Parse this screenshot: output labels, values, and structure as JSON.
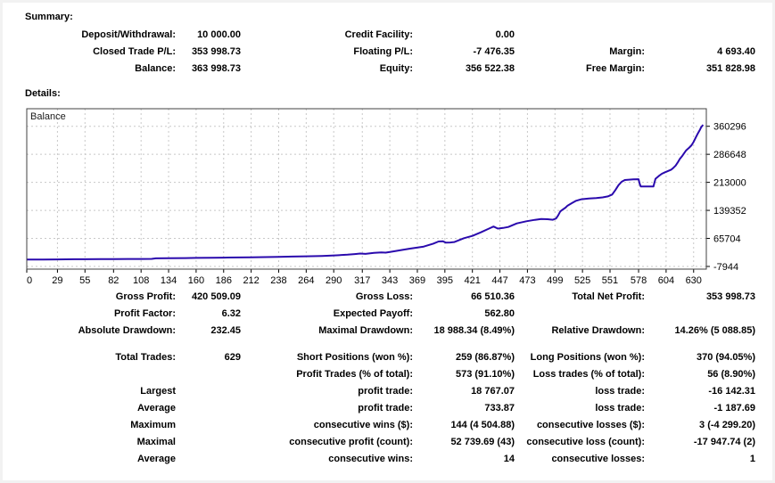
{
  "summary": {
    "heading": "Summary:",
    "rows": [
      [
        "Deposit/Withdrawal:",
        "10 000.00",
        "Credit Facility:",
        "0.00",
        "",
        ""
      ],
      [
        "Closed Trade P/L:",
        "353 998.73",
        "Floating P/L:",
        "-7 476.35",
        "Margin:",
        "4 693.40"
      ],
      [
        "Balance:",
        "363 998.73",
        "Equity:",
        "356 522.38",
        "Free Margin:",
        "351 828.98"
      ]
    ]
  },
  "details": {
    "heading": "Details:",
    "stats_top": [
      [
        "Gross Profit:",
        "420 509.09",
        "Gross Loss:",
        "66 510.36",
        "Total Net Profit:",
        "353 998.73"
      ],
      [
        "Profit Factor:",
        "6.32",
        "Expected Payoff:",
        "562.80",
        "",
        ""
      ],
      [
        "Absolute Drawdown:",
        "232.45",
        "Maximal Drawdown:",
        "18 988.34 (8.49%)",
        "Relative Drawdown:",
        "14.26% (5 088.85)"
      ]
    ],
    "stats_bottom": [
      [
        "Total Trades:",
        "629",
        "Short Positions (won %):",
        "259 (86.87%)",
        "Long Positions (won %):",
        "370 (94.05%)"
      ],
      [
        "",
        "",
        "Profit Trades (% of total):",
        "573 (91.10%)",
        "Loss trades (% of total):",
        "56 (8.90%)"
      ],
      [
        "Largest",
        "",
        "profit trade:",
        "18 767.07",
        "loss trade:",
        "-16 142.31"
      ],
      [
        "Average",
        "",
        "profit trade:",
        "733.87",
        "loss trade:",
        "-1 187.69"
      ],
      [
        "Maximum",
        "",
        "consecutive wins ($):",
        "144 (4 504.88)",
        "consecutive losses ($):",
        "3 (-4 299.20)"
      ],
      [
        "Maximal",
        "",
        "consecutive profit (count):",
        "52 739.69 (43)",
        "consecutive loss (count):",
        "-17 947.74 (2)"
      ],
      [
        "Average",
        "",
        "consecutive wins:",
        "14",
        "consecutive losses:",
        "1"
      ]
    ]
  },
  "chart_data": {
    "type": "line",
    "title": "Balance",
    "legend": [
      "Balance"
    ],
    "legend_position": "top-left-inside",
    "grid": "dashed",
    "xlabel": "",
    "ylabel": "",
    "xlim": [
      0,
      642
    ],
    "ylim": [
      -15000,
      406400
    ],
    "x_ticks": [
      0,
      29,
      55,
      82,
      108,
      134,
      160,
      186,
      212,
      238,
      264,
      290,
      317,
      343,
      369,
      395,
      421,
      447,
      473,
      499,
      525,
      551,
      578,
      604,
      630
    ],
    "y_ticks": [
      -7944,
      65704,
      139352,
      213000,
      286648,
      360296
    ],
    "colors": {
      "line": "#2a0aad",
      "grid": "#c8c8c8",
      "border": "#404040",
      "background": "#ffffff"
    },
    "series": [
      {
        "name": "Balance",
        "points": [
          [
            0,
            10000
          ],
          [
            15,
            10300
          ],
          [
            29,
            10600
          ],
          [
            45,
            10900
          ],
          [
            55,
            11000
          ],
          [
            70,
            11200
          ],
          [
            82,
            11400
          ],
          [
            95,
            11600
          ],
          [
            108,
            11800
          ],
          [
            118,
            11900
          ],
          [
            122,
            13300
          ],
          [
            134,
            13700
          ],
          [
            150,
            14100
          ],
          [
            160,
            14500
          ],
          [
            175,
            14900
          ],
          [
            186,
            15300
          ],
          [
            200,
            15700
          ],
          [
            212,
            16200
          ],
          [
            225,
            16700
          ],
          [
            238,
            17200
          ],
          [
            251,
            17900
          ],
          [
            264,
            18700
          ],
          [
            279,
            19600
          ],
          [
            293,
            21300
          ],
          [
            303,
            23000
          ],
          [
            310,
            24600
          ],
          [
            315,
            26000
          ],
          [
            320,
            25100
          ],
          [
            328,
            27600
          ],
          [
            335,
            29100
          ],
          [
            339,
            28200
          ],
          [
            345,
            31000
          ],
          [
            355,
            35500
          ],
          [
            362,
            38900
          ],
          [
            375,
            44300
          ],
          [
            384,
            52000
          ],
          [
            389,
            57500
          ],
          [
            393,
            58300
          ],
          [
            396,
            54600
          ],
          [
            400,
            55000
          ],
          [
            404,
            56100
          ],
          [
            413,
            66300
          ],
          [
            421,
            72400
          ],
          [
            429,
            81700
          ],
          [
            436,
            90500
          ],
          [
            441,
            97000
          ],
          [
            445,
            91500
          ],
          [
            450,
            93200
          ],
          [
            455,
            95800
          ],
          [
            463,
            105200
          ],
          [
            472,
            110700
          ],
          [
            480,
            114500
          ],
          [
            486,
            116900
          ],
          [
            492,
            116200
          ],
          [
            497,
            114800
          ],
          [
            500,
            118000
          ],
          [
            502,
            126000
          ],
          [
            504,
            136400
          ],
          [
            506,
            141000
          ],
          [
            509,
            146500
          ],
          [
            511,
            152000
          ],
          [
            515,
            158500
          ],
          [
            519,
            164500
          ],
          [
            524,
            168500
          ],
          [
            531,
            170500
          ],
          [
            538,
            171500
          ],
          [
            544,
            173500
          ],
          [
            549,
            176000
          ],
          [
            553,
            181000
          ],
          [
            556,
            192500
          ],
          [
            559,
            205500
          ],
          [
            562,
            214500
          ],
          [
            565,
            219000
          ],
          [
            569,
            220000
          ],
          [
            573,
            220800
          ],
          [
            578,
            221300
          ],
          [
            579,
            210000
          ],
          [
            580,
            202300
          ],
          [
            584,
            202000
          ],
          [
            588,
            202000
          ],
          [
            592,
            202000
          ],
          [
            593,
            212000
          ],
          [
            594,
            222500
          ],
          [
            597,
            229500
          ],
          [
            600,
            235500
          ],
          [
            603,
            239500
          ],
          [
            606,
            243000
          ],
          [
            609,
            246500
          ],
          [
            611,
            251500
          ],
          [
            613,
            257000
          ],
          [
            615,
            265500
          ],
          [
            617,
            274500
          ],
          [
            619,
            281500
          ],
          [
            621,
            289500
          ],
          [
            623,
            297000
          ],
          [
            626,
            304500
          ],
          [
            628,
            310500
          ],
          [
            630,
            319500
          ],
          [
            632,
            330500
          ],
          [
            634,
            341500
          ],
          [
            636,
            351500
          ],
          [
            637,
            357500
          ],
          [
            639,
            364000
          ]
        ]
      }
    ]
  }
}
